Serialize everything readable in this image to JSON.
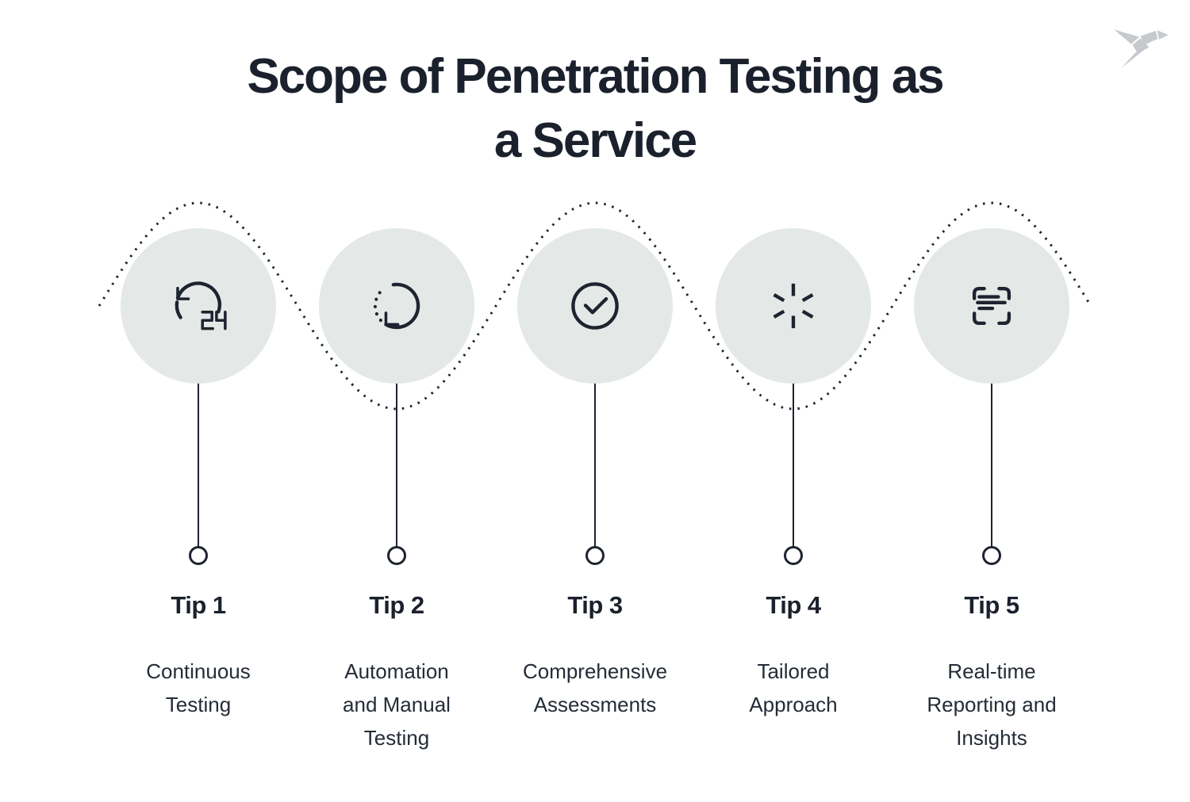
{
  "title": {
    "line1": "Scope of Penetration Testing as",
    "line2": "a Service"
  },
  "logo": {
    "name": "origami-bird-logo"
  },
  "tips": [
    {
      "label": "Tip 1",
      "description": "Continuous\nTesting",
      "icon": "24-hours-refresh-icon"
    },
    {
      "label": "Tip 2",
      "description": "Automation\nand Manual\nTesting",
      "icon": "rotate-arrow-icon"
    },
    {
      "label": "Tip 3",
      "description": "Comprehensive\nAssessments",
      "icon": "check-circle-icon"
    },
    {
      "label": "Tip 4",
      "description": "Tailored\nApproach",
      "icon": "spinner-burst-icon"
    },
    {
      "label": "Tip 5",
      "description": "Real-time\nReporting and\nInsights",
      "icon": "scan-report-icon"
    }
  ],
  "colors": {
    "background": "#ffffff",
    "ink": "#1d242f",
    "title_text": "#1b212c",
    "body_text": "#242c37",
    "bubble_fill": "#e4e9e7",
    "logo_gray": "#c6c9cd"
  }
}
